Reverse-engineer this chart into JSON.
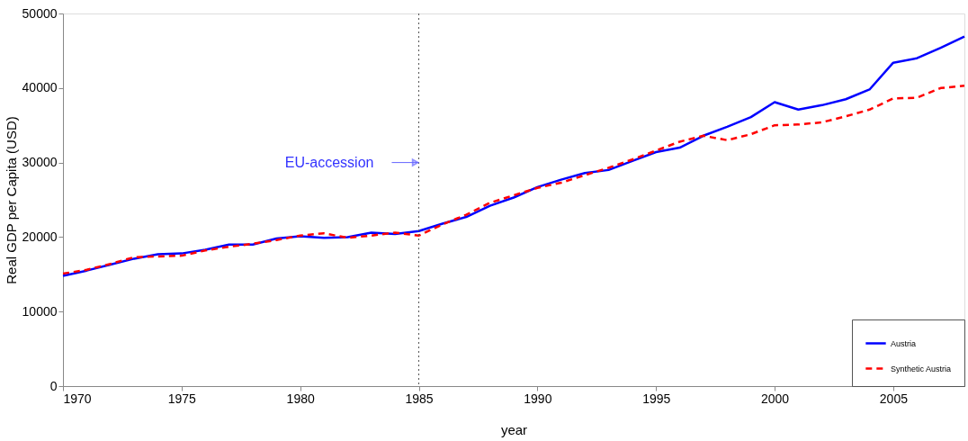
{
  "chart_data": {
    "type": "line",
    "xlabel": "year",
    "ylabel": "Real GDP per Capita (USD)",
    "x": [
      1970,
      1971,
      1972,
      1973,
      1974,
      1975,
      1976,
      1977,
      1978,
      1979,
      1980,
      1981,
      1982,
      1983,
      1984,
      1985,
      1986,
      1987,
      1988,
      1989,
      1990,
      1991,
      1992,
      1993,
      1994,
      1995,
      1996,
      1997,
      1998,
      1999,
      2000,
      2001,
      2002,
      2003,
      2004,
      2005,
      2006,
      2007,
      2008
    ],
    "series": [
      {
        "name": "Austria",
        "color": "#0000ff",
        "line_style": "solid",
        "values": [
          14800,
          15500,
          16300,
          17100,
          17700,
          17800,
          18300,
          19000,
          19000,
          19800,
          20100,
          19900,
          20000,
          20600,
          20400,
          20800,
          21800,
          22700,
          24200,
          25300,
          26700,
          27700,
          28600,
          29000,
          30200,
          31400,
          32000,
          33600,
          34800,
          36100,
          38100,
          37100,
          37700,
          38500,
          39800,
          43400,
          44000,
          45400,
          46900
        ]
      },
      {
        "name": "Synthetic Austria",
        "color": "#ff0000",
        "line_style": "dashed",
        "values": [
          15100,
          15600,
          16400,
          17300,
          17400,
          17500,
          18200,
          18700,
          19100,
          19600,
          20200,
          20500,
          19900,
          20200,
          20600,
          20200,
          21700,
          23000,
          24600,
          25600,
          26600,
          27300,
          28300,
          29300,
          30400,
          31600,
          32800,
          33600,
          33000,
          33800,
          35000,
          35100,
          35400,
          36200,
          37100,
          38600,
          38700,
          40000,
          40300
        ]
      }
    ],
    "xlim": [
      1970,
      2008
    ],
    "xticks": [
      1970,
      1975,
      1980,
      1985,
      1990,
      1995,
      2000,
      2005
    ],
    "ylim": [
      0,
      50000
    ],
    "yticks": [
      0,
      10000,
      20000,
      30000,
      40000,
      50000
    ],
    "ref_lines": [
      {
        "axis": "x",
        "value": 1985,
        "color": "#555555",
        "line_style": "dotted"
      }
    ],
    "annotations": [
      {
        "text": "EU-accession",
        "x": 1985,
        "y": 30000
      }
    ],
    "grid": false,
    "legend": "bottom right",
    "marker": "none"
  }
}
